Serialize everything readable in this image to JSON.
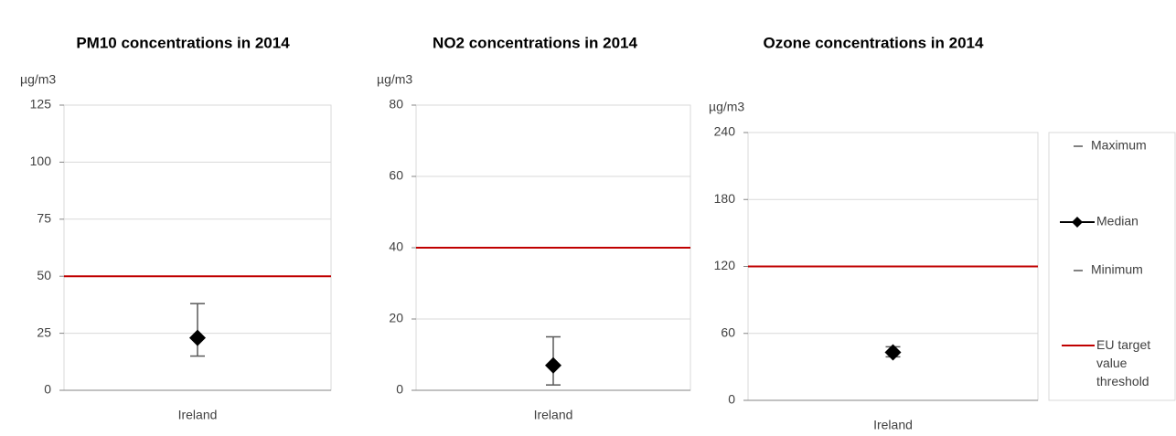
{
  "chart_data": [
    {
      "type": "high-low-median",
      "title": "PM10 concentrations in 2014",
      "ylabel": "µg/m3",
      "categories": [
        "Ireland"
      ],
      "ylim": [
        0,
        125
      ],
      "yticks": [
        0,
        25,
        50,
        75,
        100,
        125
      ],
      "grid": true,
      "series": [
        {
          "role": "max",
          "color": "#595959",
          "values": [
            38
          ]
        },
        {
          "role": "median",
          "color": "#000000",
          "values": [
            23
          ]
        },
        {
          "role": "min",
          "color": "#595959",
          "values": [
            15
          ]
        },
        {
          "role": "threshold",
          "color": "#c00000",
          "values": [
            50
          ]
        }
      ]
    },
    {
      "type": "high-low-median",
      "title": "NO2 concentrations in 2014",
      "ylabel": "µg/m3",
      "categories": [
        "Ireland"
      ],
      "ylim": [
        0,
        80
      ],
      "yticks": [
        0,
        20,
        40,
        60,
        80
      ],
      "grid": true,
      "series": [
        {
          "role": "max",
          "color": "#595959",
          "values": [
            15
          ]
        },
        {
          "role": "median",
          "color": "#000000",
          "values": [
            7
          ]
        },
        {
          "role": "min",
          "color": "#595959",
          "values": [
            1.5
          ]
        },
        {
          "role": "threshold",
          "color": "#c00000",
          "values": [
            40
          ]
        }
      ]
    },
    {
      "type": "high-low-median",
      "title": "Ozone concentrations in 2014",
      "ylabel": "µg/m3",
      "categories": [
        "Ireland"
      ],
      "ylim": [
        0,
        240
      ],
      "yticks": [
        0,
        60,
        120,
        180,
        240
      ],
      "grid": true,
      "legend": "right",
      "series": [
        {
          "role": "max",
          "name": "Maximum",
          "color": "#595959",
          "values": [
            48
          ]
        },
        {
          "role": "median",
          "name": "Median",
          "color": "#000000",
          "values": [
            43
          ]
        },
        {
          "role": "min",
          "name": "Minimum",
          "color": "#595959",
          "values": [
            39
          ]
        },
        {
          "role": "threshold",
          "name": "EU target value threshold",
          "color": "#c00000",
          "values": [
            120
          ]
        }
      ]
    }
  ]
}
